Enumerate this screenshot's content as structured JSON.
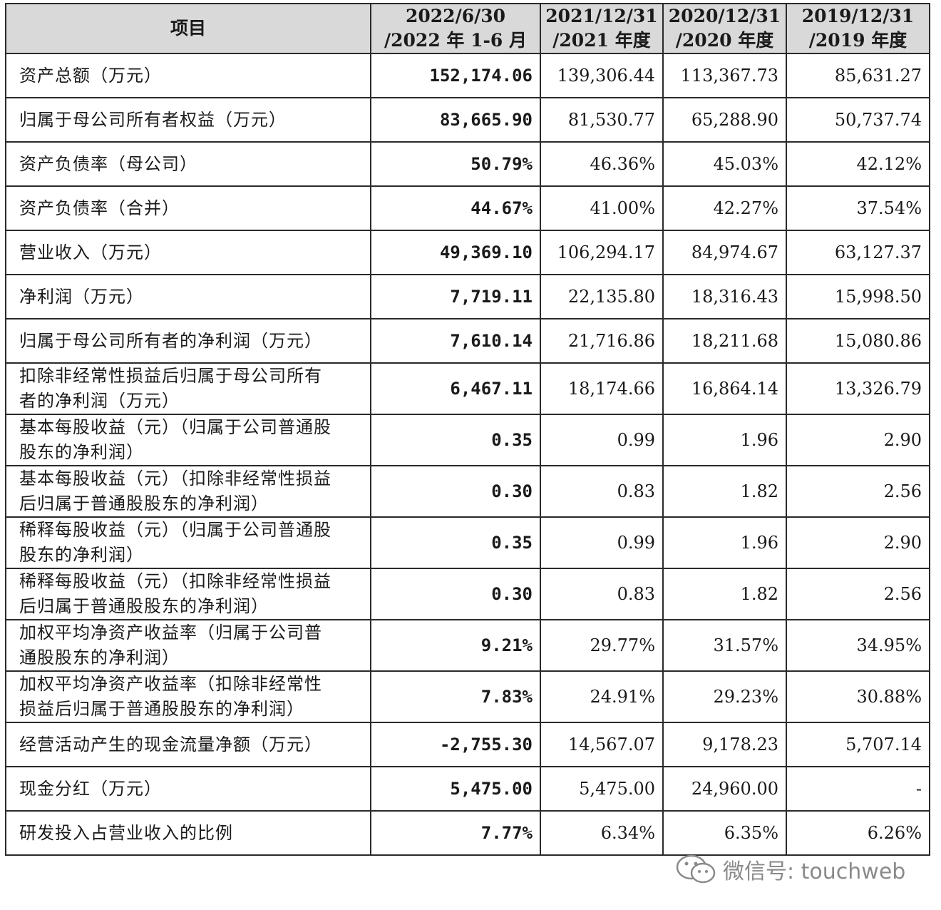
{
  "headers": {
    "item": "项目",
    "c1": [
      "2022/6/30",
      "/2022 年 1-6 月"
    ],
    "c2": [
      "2021/12/31",
      "/2021 年度"
    ],
    "c3": [
      "2020/12/31",
      "/2020 年度"
    ],
    "c4": [
      "2019/12/31",
      "/2019 年度"
    ]
  },
  "rows": [
    {
      "label": [
        "资产总额（万元）"
      ],
      "values": [
        "152,174.06",
        "139,306.44",
        "113,367.73",
        "85,631.27"
      ]
    },
    {
      "label": [
        "归属于母公司所有者权益（万元）"
      ],
      "values": [
        "83,665.90",
        "81,530.77",
        "65,288.90",
        "50,737.74"
      ]
    },
    {
      "label": [
        "资产负债率（母公司）"
      ],
      "values": [
        "50.79%",
        "46.36%",
        "45.03%",
        "42.12%"
      ]
    },
    {
      "label": [
        "资产负债率（合并）"
      ],
      "values": [
        "44.67%",
        "41.00%",
        "42.27%",
        "37.54%"
      ]
    },
    {
      "label": [
        "营业收入（万元）"
      ],
      "values": [
        "49,369.10",
        "106,294.17",
        "84,974.67",
        "63,127.37"
      ]
    },
    {
      "label": [
        "净利润（万元）"
      ],
      "values": [
        "7,719.11",
        "22,135.80",
        "18,316.43",
        "15,998.50"
      ]
    },
    {
      "label": [
        "归属于母公司所有者的净利润（万元）"
      ],
      "values": [
        "7,610.14",
        "21,716.86",
        "18,211.68",
        "15,080.86"
      ]
    },
    {
      "label": [
        "扣除非经常性损益后归属于母公司所有",
        "者的净利润（万元）"
      ],
      "values": [
        "6,467.11",
        "18,174.66",
        "16,864.14",
        "13,326.79"
      ]
    },
    {
      "label": [
        "基本每股收益（元）（归属于公司普通股",
        "股东的净利润）"
      ],
      "values": [
        "0.35",
        "0.99",
        "1.96",
        "2.90"
      ]
    },
    {
      "label": [
        "基本每股收益（元）（扣除非经常性损益",
        "后归属于普通股股东的净利润）"
      ],
      "values": [
        "0.30",
        "0.83",
        "1.82",
        "2.56"
      ]
    },
    {
      "label": [
        "稀释每股收益（元）（归属于公司普通股",
        "股东的净利润）"
      ],
      "values": [
        "0.35",
        "0.99",
        "1.96",
        "2.90"
      ]
    },
    {
      "label": [
        "稀释每股收益（元）（扣除非经常性损益",
        "后归属于普通股股东的净利润）"
      ],
      "values": [
        "0.30",
        "0.83",
        "1.82",
        "2.56"
      ]
    },
    {
      "label": [
        "加权平均净资产收益率（归属于公司普",
        "通股股东的净利润）"
      ],
      "values": [
        "9.21%",
        "29.77%",
        "31.57%",
        "34.95%"
      ]
    },
    {
      "label": [
        "加权平均净资产收益率（扣除非经常性",
        "损益后归属于普通股股东的净利润）"
      ],
      "values": [
        "7.83%",
        "24.91%",
        "29.23%",
        "30.88%"
      ]
    },
    {
      "label": [
        "经营活动产生的现金流量净额（万元）"
      ],
      "values": [
        "-2,755.30",
        "14,567.07",
        "9,178.23",
        "5,707.14"
      ]
    },
    {
      "label": [
        "现金分红（万元）"
      ],
      "values": [
        "5,475.00",
        "5,475.00",
        "24,960.00",
        "-"
      ]
    },
    {
      "label": [
        "研发投入占营业收入的比例"
      ],
      "values": [
        "7.77%",
        "6.34%",
        "6.35%",
        "6.26%"
      ]
    }
  ],
  "watermark": {
    "text": "微信号: touchweb",
    "icon": "wechat-icon"
  }
}
